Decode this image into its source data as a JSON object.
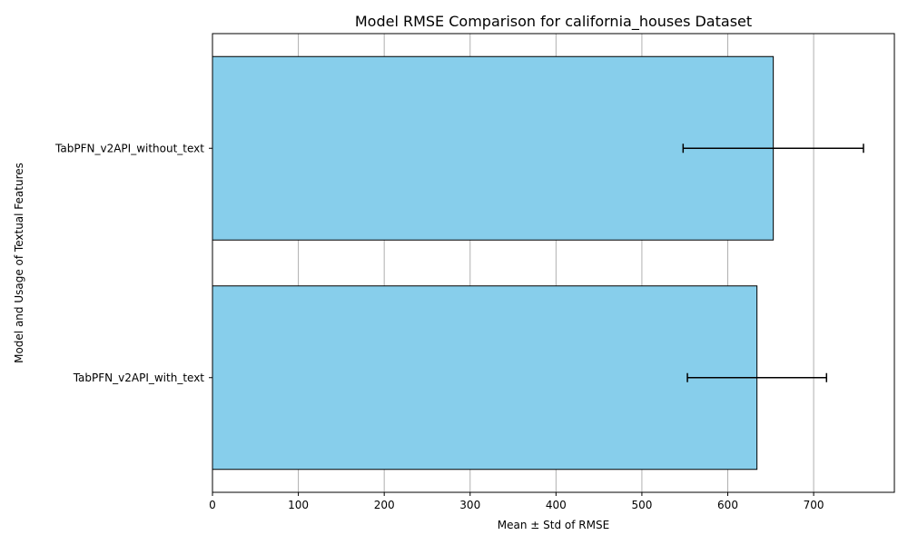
{
  "chart_data": {
    "type": "bar",
    "orientation": "horizontal",
    "title": "Model RMSE Comparison for california_houses Dataset",
    "xlabel": "Mean ± Std of RMSE",
    "ylabel": "Model and Usage of Textual Features",
    "categories": [
      "TabPFN_v2API_with_text",
      "TabPFN_v2API_without_text"
    ],
    "values": [
      634,
      653
    ],
    "errors": [
      81,
      105
    ],
    "xlim": [
      0,
      794
    ],
    "xticks": [
      0,
      100,
      200,
      300,
      400,
      500,
      600,
      700
    ],
    "grid": "x",
    "bar_color": "#87CEEB",
    "edge_color": "#000000",
    "grid_color": "#b0b0b0"
  }
}
